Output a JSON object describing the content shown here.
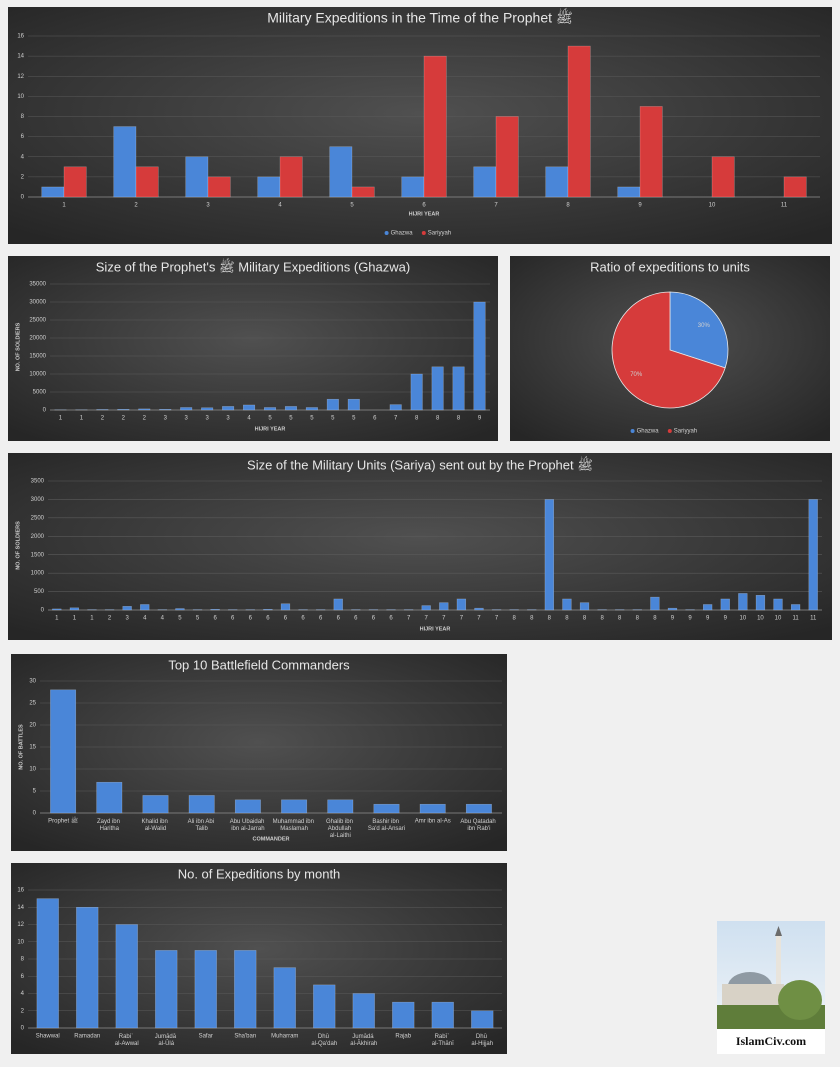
{
  "chart_data": [
    {
      "type": "bar",
      "title": "Military Expeditions in the Time of the Prophet ﷺ",
      "x_label": "HIJRI YEAR",
      "categories": [
        "1",
        "2",
        "3",
        "4",
        "5",
        "6",
        "7",
        "8",
        "9",
        "10",
        "11"
      ],
      "series": [
        {
          "name": "Ghazwa",
          "color": "#4a86d8",
          "values": [
            1,
            7,
            4,
            2,
            5,
            2,
            3,
            3,
            1,
            0,
            0
          ]
        },
        {
          "name": "Sariyyah",
          "color": "#d63b3b",
          "values": [
            3,
            3,
            2,
            4,
            1,
            14,
            8,
            15,
            9,
            4,
            2
          ]
        }
      ],
      "ylim": [
        0,
        16
      ],
      "yticks": [
        0,
        2,
        4,
        6,
        8,
        10,
        12,
        14,
        16
      ],
      "grid": true,
      "legend": "bottom"
    },
    {
      "type": "bar",
      "title": "Size of the Prophet's ﷺ Military Expeditions (Ghazwa)",
      "x_label": "HIJRI YEAR",
      "y_label": "NO. OF SOLDIERS",
      "categories": [
        "1",
        "1",
        "2",
        "2",
        "2",
        "3",
        "3",
        "3",
        "3",
        "4",
        "5",
        "5",
        "5",
        "5",
        "5",
        "6",
        "7",
        "8",
        "8",
        "8",
        "9"
      ],
      "values": [
        50,
        60,
        150,
        200,
        313,
        200,
        700,
        630,
        1000,
        1400,
        700,
        1000,
        700,
        3000,
        3000,
        0,
        1500,
        10000,
        12000,
        12000,
        30000
      ],
      "color": "#4a86d8",
      "ylim": [
        0,
        35000
      ],
      "yticks": [
        0,
        5000,
        10000,
        15000,
        20000,
        25000,
        30000,
        35000
      ],
      "grid": true
    },
    {
      "type": "pie",
      "title": "Ratio of expeditions to units",
      "categories": [
        "Ghazwa",
        "Sariyyah"
      ],
      "values": [
        30,
        70
      ],
      "value_labels": [
        "30%",
        "70%"
      ],
      "colors": [
        "#4a86d8",
        "#d63b3b"
      ],
      "legend": "bottom"
    },
    {
      "type": "bar",
      "title": "Size of the Military Units (Sariya) sent out by the Prophet ﷺ",
      "x_label": "HIJRI YEAR",
      "y_label": "NO. OF SOLDIERS",
      "categories": [
        "1",
        "1",
        "1",
        "2",
        "3",
        "4",
        "4",
        "5",
        "5",
        "6",
        "6",
        "6",
        "6",
        "6",
        "6",
        "6",
        "6",
        "6",
        "6",
        "6",
        "7",
        "7",
        "7",
        "7",
        "7",
        "7",
        "8",
        "8",
        "8",
        "8",
        "8",
        "8",
        "8",
        "8",
        "8",
        "9",
        "9",
        "9",
        "9",
        "10",
        "10",
        "10",
        "11",
        "11"
      ],
      "values": [
        30,
        60,
        10,
        10,
        100,
        150,
        10,
        40,
        10,
        20,
        10,
        10,
        20,
        170,
        10,
        10,
        300,
        10,
        10,
        10,
        10,
        120,
        200,
        300,
        50,
        10,
        10,
        10,
        3000,
        300,
        200,
        10,
        10,
        10,
        350,
        50,
        10,
        150,
        300,
        450,
        400,
        300,
        150,
        3000
      ],
      "color": "#4a86d8",
      "ylim": [
        0,
        3500
      ],
      "yticks": [
        0,
        500,
        1000,
        1500,
        2000,
        2500,
        3000,
        3500
      ],
      "grid": true
    },
    {
      "type": "bar",
      "title": "Top 10 Battlefield Commanders",
      "x_label": "COMMANDER",
      "y_label": "NO. OF BATTLES",
      "categories": [
        "Prophet ﷺ",
        "Zayd ibn Haritha",
        "Khalid ibn al-Walid",
        "Ali ibn Abi Talib",
        "Abu Ubaidah ibn al-Jarrah",
        "Muhammad ibn Maslamah",
        "Ghalib ibn Abdullah al-Laithi",
        "Bashir ibn Sa'd al-Ansari",
        "Amr ibn al-As",
        "Abu Qatadah ibn Rab'i"
      ],
      "values": [
        28,
        7,
        4,
        4,
        3,
        3,
        3,
        2,
        2,
        2
      ],
      "color": "#4a86d8",
      "ylim": [
        0,
        30
      ],
      "yticks": [
        0,
        5,
        10,
        15,
        20,
        25,
        30
      ],
      "grid": true
    },
    {
      "type": "bar",
      "title": "No. of Expeditions by month",
      "categories": [
        "Shawwal",
        "Ramadan",
        "Rabiʿ al-Awwal",
        "Jumādā al-Ūlá",
        "Safar",
        "Sha'ban",
        "Muharram",
        "Dhū al-Qa'dah",
        "Jumādá al-Ākhirah",
        "Rajab",
        "Rabīʿ al-Thānī",
        "Dhū al-Hijjah"
      ],
      "values": [
        15,
        14,
        12,
        9,
        9,
        9,
        7,
        5,
        4,
        3,
        3,
        2
      ],
      "color": "#4a86d8",
      "ylim": [
        0,
        16
      ],
      "yticks": [
        0,
        2,
        4,
        6,
        8,
        10,
        12,
        14,
        16
      ],
      "grid": true
    }
  ],
  "logo": {
    "caption": "IslamCiv.com"
  }
}
